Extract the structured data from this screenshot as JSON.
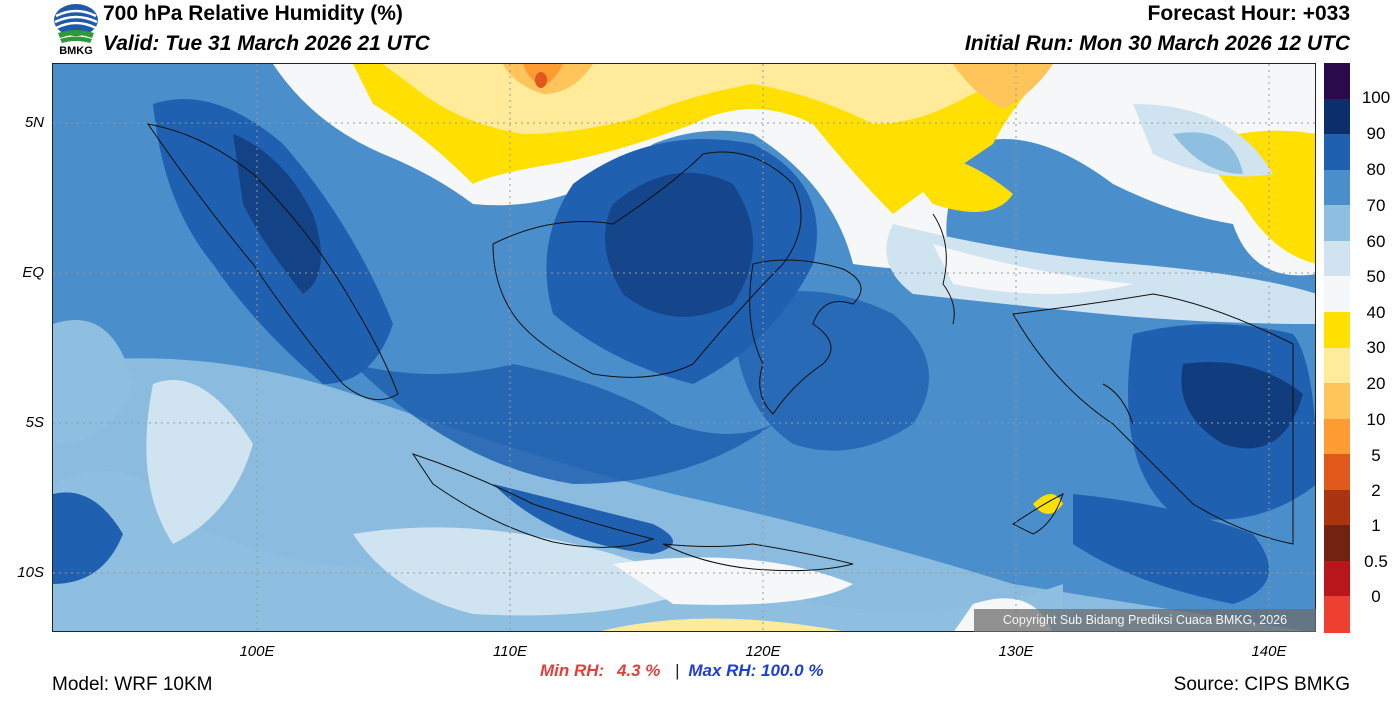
{
  "header": {
    "title": "700 hPa Relative Humidity (%)",
    "valid": "Valid: Tue 31 March 2026 21 UTC",
    "forecast": "Forecast Hour: +033",
    "initial": "Initial Run: Mon 30 March 2026 12 UTC",
    "logo_text": "BMKG"
  },
  "axes": {
    "lat_labels": [
      "5N",
      "EQ",
      "5S",
      "10S"
    ],
    "lon_labels": [
      "100E",
      "110E",
      "120E",
      "130E",
      "140E"
    ]
  },
  "legend": {
    "labels": [
      "100",
      "90",
      "80",
      "70",
      "60",
      "50",
      "40",
      "30",
      "20",
      "10",
      "5",
      "2",
      "1",
      "0.5",
      "0"
    ],
    "colors": [
      "#2a0a4a",
      "#0c2f6b",
      "#2060b0",
      "#4a8fcb",
      "#8ebfe0",
      "#cfe3f1",
      "#f5f7f9",
      "#ffe000",
      "#ffeb99",
      "#ffc45a",
      "#ff9b33",
      "#e0591a",
      "#aa3410",
      "#72220e",
      "#b8161a",
      "#ee4030"
    ]
  },
  "stats": {
    "min_label": "Min RH:",
    "min_value": "4.3 %",
    "separator": "|",
    "max_label": "Max RH: 100.0 %"
  },
  "footer": {
    "model": "Model: WRF 10KM",
    "source": "Source: CIPS BMKG",
    "copyright": "Copyright Sub Bidang Prediksi Cuaca BMKG, 2026"
  }
}
